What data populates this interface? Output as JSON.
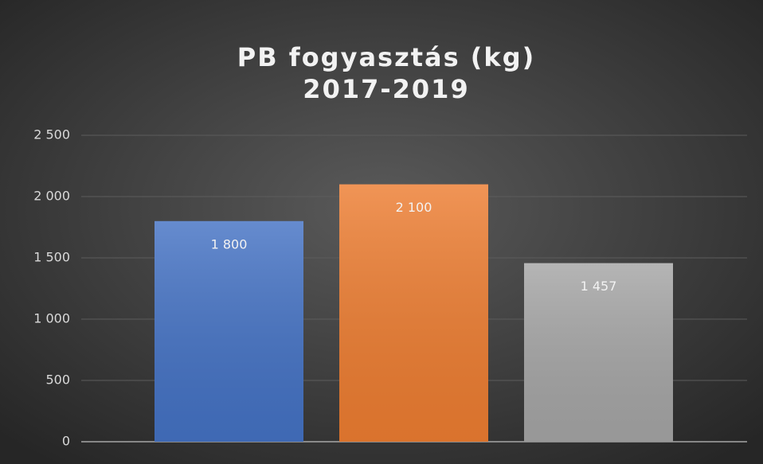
{
  "chart_data": {
    "type": "bar",
    "title": "PB fogyasztás (kg)",
    "subtitle": "2017-2019",
    "categories": [
      null,
      null,
      null
    ],
    "values": [
      1800,
      2100,
      1457
    ],
    "value_labels": [
      "1 800",
      "2 100",
      "1 457"
    ],
    "colors": [
      "#4472c4",
      "#ed7d31",
      "#a5a5a5"
    ],
    "ylim": [
      0,
      2500
    ],
    "yticks": [
      0,
      500,
      {
        "value": 1000,
        "label": "1 000"
      },
      {
        "value": 1500,
        "label": "1 500"
      },
      {
        "value": 2000,
        "label": "2 000"
      },
      {
        "value": 2500,
        "label": "2 500"
      }
    ],
    "grid": true
  }
}
